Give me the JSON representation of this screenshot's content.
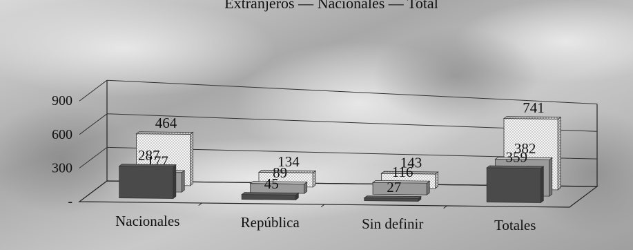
{
  "chart_data": {
    "type": "bar",
    "style": "3d-stacked-rows",
    "grid": true,
    "title": "",
    "legend": {
      "placement": "top",
      "text": "Extranjeros — Nacionales — Total"
    },
    "categories": [
      "Nacionales",
      "República",
      "Sin definir",
      "Totales"
    ],
    "series": [
      {
        "name": "",
        "values": [
          287,
          45,
          27,
          359
        ],
        "color": "#4a4a4a"
      },
      {
        "name": "",
        "values": [
          177,
          89,
          116,
          382
        ],
        "color": "#9a9a9a"
      },
      {
        "name": "",
        "values": [
          464,
          134,
          143,
          741
        ],
        "color": "#f4f4f4",
        "pattern": "dotted"
      }
    ],
    "y_ticks": [
      "-",
      "300",
      "600",
      "900"
    ],
    "ylim": [
      0,
      900
    ]
  }
}
